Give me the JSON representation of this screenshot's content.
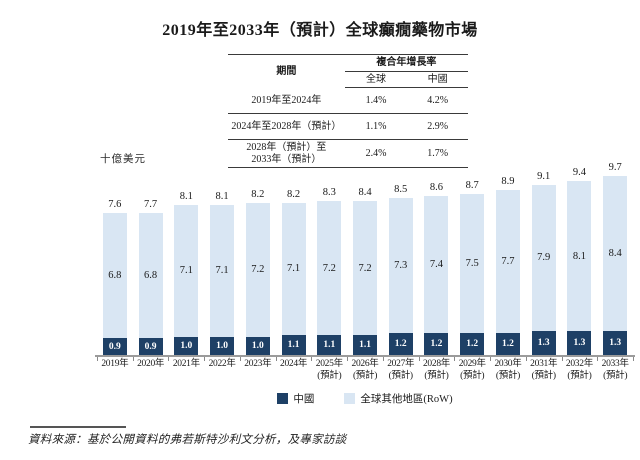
{
  "title": "2019年至2033年（預計）全球癲癇藥物市場",
  "cagr_table": {
    "period_header": "期間",
    "cagr_header": "複合年增長率",
    "col_global": "全球",
    "col_china": "中國",
    "rows": [
      {
        "period_lines": [
          "2019年至2024年"
        ],
        "global": "1.4%",
        "china": "4.2%"
      },
      {
        "period_lines": [
          "2024年至2028年（預計）"
        ],
        "global": "1.1%",
        "china": "2.9%"
      },
      {
        "period_lines": [
          "2028年（預計）至",
          "2033年（預計）"
        ],
        "global": "2.4%",
        "china": "1.7%"
      }
    ]
  },
  "chart_data": {
    "type": "bar",
    "stacked": true,
    "title": "2019年至2033年（預計）全球癲癇藥物市場",
    "ylabel": "十億美元",
    "xlabel": "",
    "grid": false,
    "legend_position": "bottom-center",
    "categories": [
      "2019年",
      "2020年",
      "2021年",
      "2022年",
      "2023年",
      "2024年",
      "2025年",
      "2026年",
      "2027年",
      "2028年",
      "2029年",
      "2030年",
      "2031年",
      "2032年",
      "2033年"
    ],
    "forecast_label": "(預計)",
    "forecast_start_index": 6,
    "series": [
      {
        "name": "中國",
        "color": "#1e4066",
        "values": [
          0.9,
          0.9,
          1.0,
          1.0,
          1.0,
          1.1,
          1.1,
          1.1,
          1.2,
          1.2,
          1.2,
          1.2,
          1.3,
          1.3,
          1.3
        ]
      },
      {
        "name": "全球其他地區(RoW)",
        "color": "#d9e6f3",
        "values": [
          6.8,
          6.8,
          7.1,
          7.1,
          7.2,
          7.1,
          7.2,
          7.2,
          7.3,
          7.4,
          7.5,
          7.7,
          7.9,
          8.1,
          8.4
        ]
      }
    ],
    "totals": [
      7.6,
      7.7,
      8.1,
      8.1,
      8.2,
      8.2,
      8.3,
      8.4,
      8.5,
      8.6,
      8.7,
      8.9,
      9.1,
      9.4,
      9.7
    ],
    "ylim": [
      0,
      10
    ],
    "cagr_annotations": [
      {
        "period": "2019年至2024年",
        "global": "1.4%",
        "china": "4.2%"
      },
      {
        "period": "2024年至2028年（預計）",
        "global": "1.1%",
        "china": "2.9%"
      },
      {
        "period": "2028年（預計）至2033年（預計）",
        "global": "2.4%",
        "china": "1.7%"
      }
    ]
  },
  "legend": {
    "china_label": "中國",
    "row_label": "全球其他地區(RoW)"
  },
  "colors": {
    "china_bar": "#1e4066",
    "row_bar": "#d9e6f3",
    "axis_line": "#9b9b9b"
  },
  "source_note": "資料來源：基於公開資料的弗若斯特沙利文分析，及專家訪談"
}
